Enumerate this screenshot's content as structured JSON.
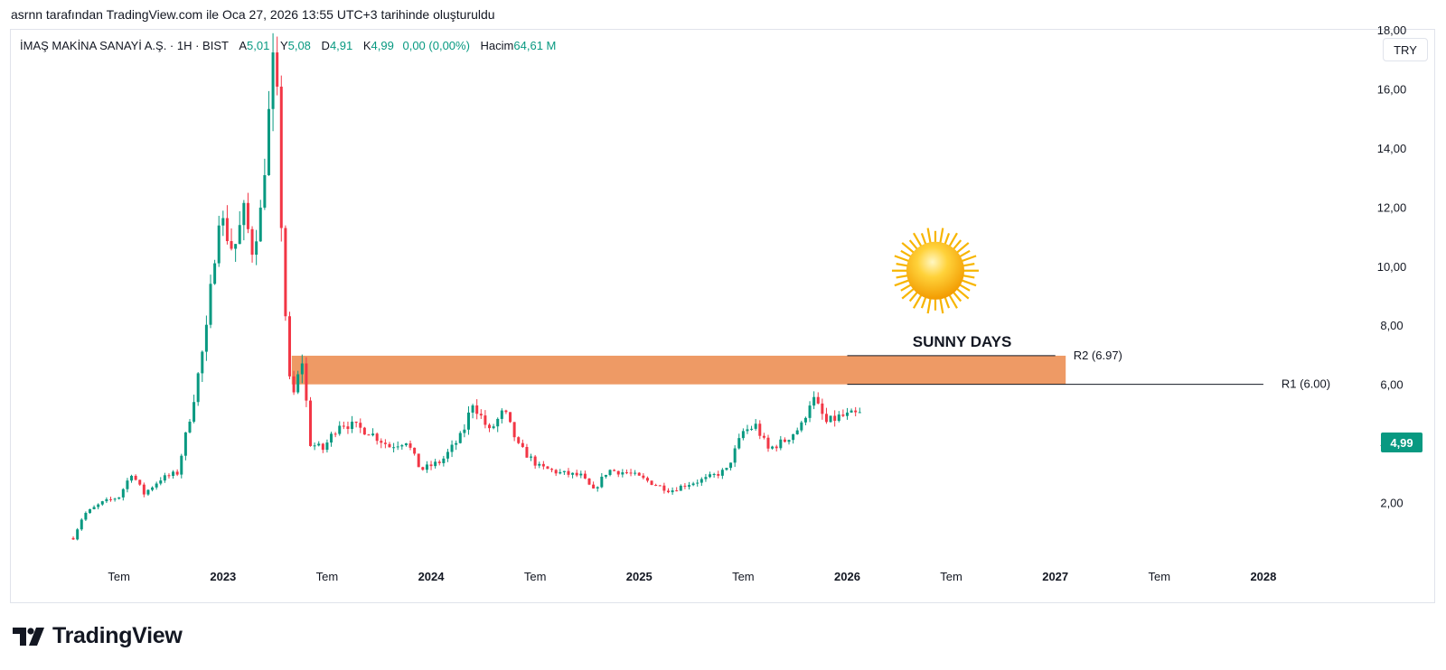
{
  "caption": "asrnn tarafından TradingView.com ile Oca 27, 2026 13:55 UTC+3 tarihinde oluşturuldu",
  "legend": {
    "symbol": "İMAŞ MAKİNA SANAYİ A.Ş. · 1H · BIST",
    "open_label": "A",
    "open": "5,01",
    "high_label": "Y",
    "high": "5,08",
    "low_label": "D",
    "low": "4,91",
    "close_label": "K",
    "close": "4,99",
    "change": "0,00 (0,00%)",
    "volume_label": "Hacim",
    "volume": "64,61 M"
  },
  "currency": "TRY",
  "last_price": "4,99",
  "brand": "TradingView",
  "colors": {
    "up": "#089981",
    "down": "#f23645",
    "zone": "#ee9a65",
    "label_bg": "#089981"
  },
  "chart_data": {
    "type": "candlestick",
    "title": "İMAŞ MAKİNA SANAYİ A.Ş. · 1H · BIST",
    "y_axis": {
      "min": 0,
      "max": 18,
      "ticks": [
        "2,00",
        "4,00",
        "6,00",
        "8,00",
        "10,00",
        "12,00",
        "14,00",
        "16,00",
        "18,00"
      ],
      "tick_values": [
        2,
        4,
        6,
        8,
        10,
        12,
        14,
        16,
        18
      ]
    },
    "x_axis": {
      "ticks": [
        "Tem",
        "2023",
        "Tem",
        "2024",
        "Tem",
        "2025",
        "Tem",
        "2026",
        "Tem",
        "2027",
        "Tem",
        "2028"
      ],
      "tick_values": [
        2022.5,
        2023.0,
        2023.5,
        2024.0,
        2024.5,
        2025.0,
        2025.5,
        2026.0,
        2026.5,
        2027.0,
        2027.5,
        2028.0
      ],
      "min": 2021.98,
      "max": 2028.4
    },
    "price_path": [
      [
        2022.28,
        0.8
      ],
      [
        2022.33,
        1.6
      ],
      [
        2022.42,
        2.0
      ],
      [
        2022.5,
        2.2
      ],
      [
        2022.56,
        3.0
      ],
      [
        2022.62,
        2.3
      ],
      [
        2022.7,
        2.8
      ],
      [
        2022.78,
        3.0
      ],
      [
        2022.85,
        5.2
      ],
      [
        2022.92,
        7.8
      ],
      [
        2022.98,
        11.8
      ],
      [
        2023.05,
        10.5
      ],
      [
        2023.1,
        11.8
      ],
      [
        2023.14,
        10.6
      ],
      [
        2023.18,
        11.8
      ],
      [
        2023.25,
        17.6
      ],
      [
        2023.28,
        11.5
      ],
      [
        2023.31,
        6.8
      ],
      [
        2023.33,
        5.4
      ],
      [
        2023.38,
        6.8
      ],
      [
        2023.42,
        4.0
      ],
      [
        2023.48,
        3.8
      ],
      [
        2023.56,
        4.7
      ],
      [
        2023.62,
        4.6
      ],
      [
        2023.7,
        4.4
      ],
      [
        2023.8,
        3.9
      ],
      [
        2023.88,
        4.1
      ],
      [
        2023.95,
        3.1
      ],
      [
        2024.05,
        3.4
      ],
      [
        2024.15,
        4.3
      ],
      [
        2024.2,
        5.4
      ],
      [
        2024.28,
        4.4
      ],
      [
        2024.35,
        5.1
      ],
      [
        2024.42,
        3.9
      ],
      [
        2024.52,
        3.2
      ],
      [
        2024.62,
        3.0
      ],
      [
        2024.72,
        2.9
      ],
      [
        2024.78,
        2.4
      ],
      [
        2024.85,
        3.1
      ],
      [
        2024.95,
        3.0
      ],
      [
        2025.05,
        2.7
      ],
      [
        2025.15,
        2.4
      ],
      [
        2025.22,
        2.6
      ],
      [
        2025.32,
        2.8
      ],
      [
        2025.42,
        3.1
      ],
      [
        2025.5,
        4.4
      ],
      [
        2025.56,
        4.6
      ],
      [
        2025.62,
        3.8
      ],
      [
        2025.7,
        4.1
      ],
      [
        2025.78,
        4.6
      ],
      [
        2025.83,
        5.6
      ],
      [
        2025.9,
        4.7
      ],
      [
        2025.96,
        4.9
      ],
      [
        2026.06,
        4.99
      ]
    ],
    "zone": {
      "label": "",
      "from_x": 2023.33,
      "to_x": 2027.05,
      "y_low": 6.0,
      "y_high": 6.97,
      "color": "#ee9a65"
    },
    "levels": [
      {
        "label": "R2 (6.97)",
        "value": 6.97,
        "from_x": 2026.0,
        "to_x": 2027.0
      },
      {
        "label": "R1 (6.00)",
        "value": 6.0,
        "from_x": 2026.0,
        "to_x": 2028.0
      }
    ],
    "annotation": {
      "text": "SUNNY DAYS",
      "x": 2026.5,
      "y": 7.15
    },
    "sun": {
      "x": 2026.38,
      "y": 10.0
    }
  }
}
